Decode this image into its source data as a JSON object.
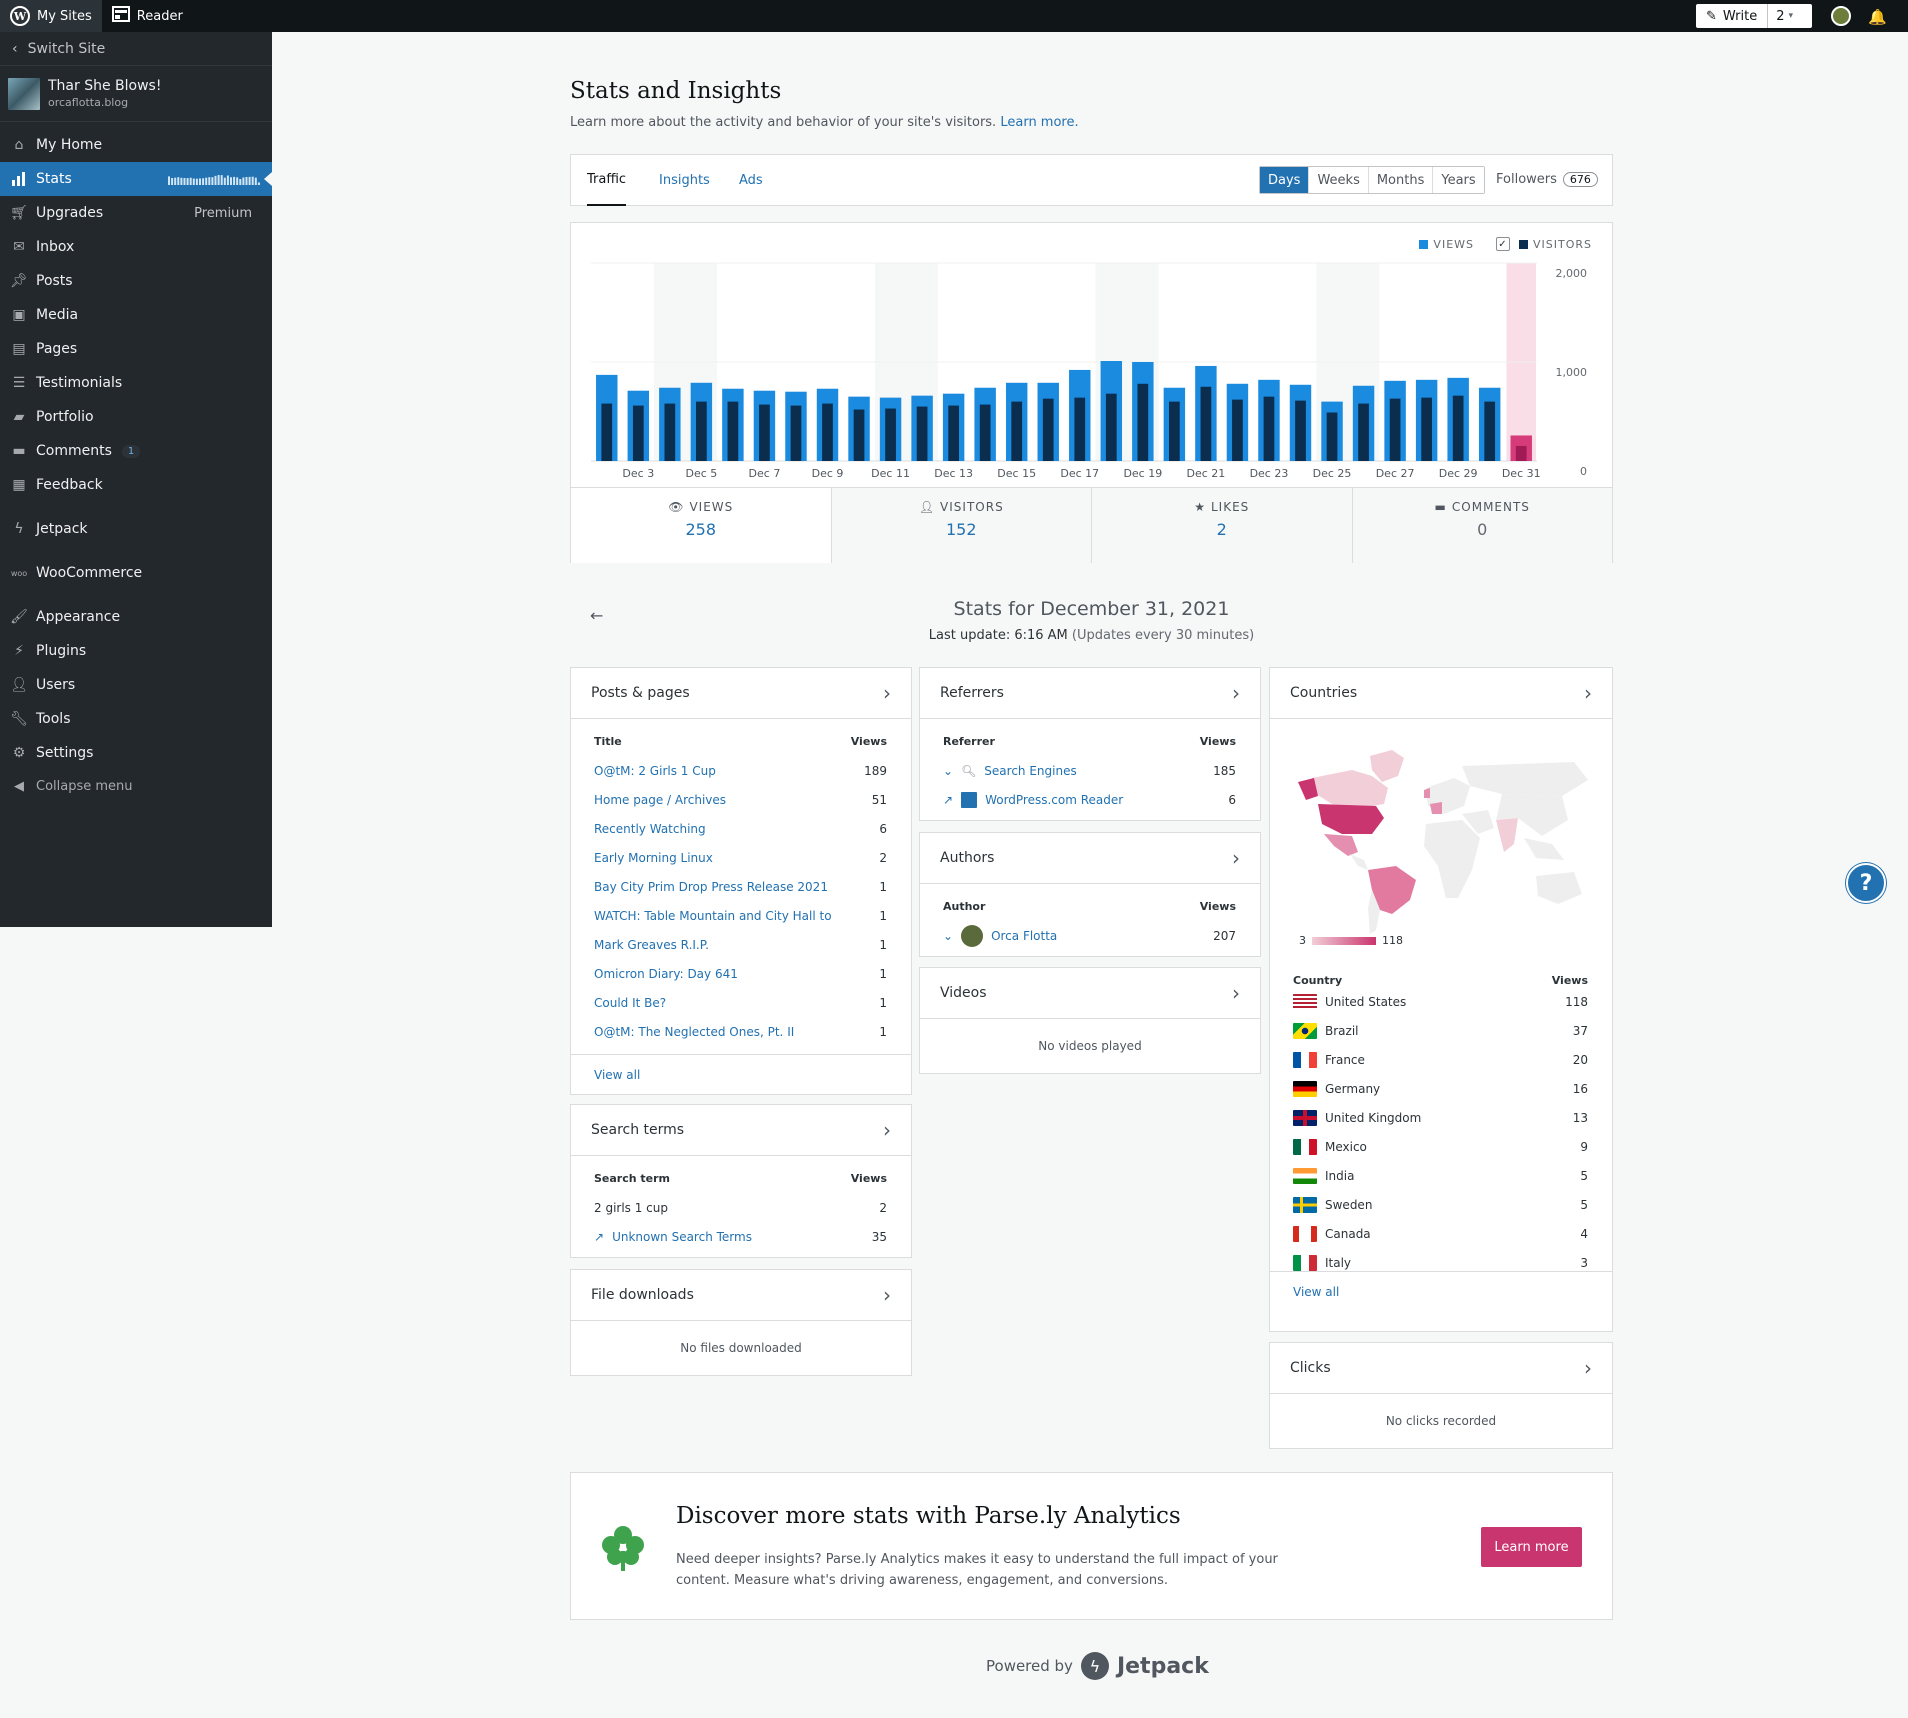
{
  "topbar": {
    "my_sites": "My Sites",
    "reader": "Reader",
    "write": "Write",
    "write_count": "2"
  },
  "sidebar": {
    "switch_site": "Switch Site",
    "site_name": "Thar She Blows!",
    "site_url": "orcaflotta.blog",
    "items": [
      {
        "label": "My Home",
        "icon": "home-icon"
      },
      {
        "label": "Stats",
        "icon": "stats-icon"
      },
      {
        "label": "Upgrades",
        "icon": "cart-icon",
        "extra": "Premium"
      },
      {
        "label": "Inbox",
        "icon": "mail-icon"
      },
      {
        "label": "Posts",
        "icon": "pin-icon"
      },
      {
        "label": "Media",
        "icon": "media-icon"
      },
      {
        "label": "Pages",
        "icon": "pages-icon"
      },
      {
        "label": "Testimonials",
        "icon": "testimonial-icon"
      },
      {
        "label": "Portfolio",
        "icon": "folder-icon"
      },
      {
        "label": "Comments",
        "icon": "comment-icon",
        "badge": "1"
      },
      {
        "label": "Feedback",
        "icon": "feedback-icon"
      },
      {
        "label": "Jetpack",
        "icon": "jetpack-icon"
      },
      {
        "label": "WooCommerce",
        "icon": "woo-icon"
      },
      {
        "label": "Appearance",
        "icon": "brush-icon"
      },
      {
        "label": "Plugins",
        "icon": "plug-icon"
      },
      {
        "label": "Users",
        "icon": "user-icon"
      },
      {
        "label": "Tools",
        "icon": "wrench-icon"
      },
      {
        "label": "Settings",
        "icon": "settings-icon"
      }
    ],
    "collapse": "Collapse menu"
  },
  "header": {
    "title": "Stats and Insights",
    "subtitle": "Learn more about the activity and behavior of your site's visitors.",
    "learn_more": "Learn more."
  },
  "tabs": {
    "traffic": "Traffic",
    "insights": "Insights",
    "ads": "Ads"
  },
  "periods": [
    "Days",
    "Weeks",
    "Months",
    "Years"
  ],
  "followers": {
    "label": "Followers",
    "count": "676"
  },
  "legend": {
    "views": "VIEWS",
    "visitors": "VISITORS"
  },
  "colors": {
    "views": "#1b8be0",
    "visitors": "#0b2e4e",
    "selected_views": "#d63c79",
    "selected_visitors": "#a01b55",
    "accent": "#2271b1",
    "parsely": "#c9356e"
  },
  "chart_data": {
    "type": "bar",
    "categories": [
      "Dec 2",
      "Dec 3",
      "Dec 4",
      "Dec 5",
      "Dec 6",
      "Dec 7",
      "Dec 8",
      "Dec 9",
      "Dec 10",
      "Dec 11",
      "Dec 12",
      "Dec 13",
      "Dec 14",
      "Dec 15",
      "Dec 16",
      "Dec 17",
      "Dec 18",
      "Dec 19",
      "Dec 20",
      "Dec 21",
      "Dec 22",
      "Dec 23",
      "Dec 24",
      "Dec 25",
      "Dec 26",
      "Dec 27",
      "Dec 28",
      "Dec 29",
      "Dec 30",
      "Dec 31"
    ],
    "tick_labels": [
      "Dec 3",
      "Dec 5",
      "Dec 7",
      "Dec 9",
      "Dec 11",
      "Dec 13",
      "Dec 15",
      "Dec 17",
      "Dec 19",
      "Dec 21",
      "Dec 23",
      "Dec 25",
      "Dec 27",
      "Dec 29",
      "Dec 31"
    ],
    "series": [
      {
        "name": "VIEWS",
        "values": [
          870,
          710,
          740,
          790,
          730,
          710,
          700,
          730,
          650,
          640,
          660,
          680,
          740,
          790,
          790,
          920,
          1010,
          1000,
          740,
          960,
          780,
          820,
          770,
          600,
          760,
          810,
          820,
          840,
          740,
          258
        ]
      },
      {
        "name": "VISITORS",
        "values": [
          580,
          560,
          580,
          600,
          600,
          570,
          560,
          580,
          520,
          530,
          550,
          560,
          570,
          600,
          630,
          640,
          680,
          780,
          600,
          750,
          620,
          650,
          610,
          490,
          580,
          630,
          640,
          660,
          600,
          152
        ]
      }
    ],
    "ylim": [
      0,
      2000
    ],
    "yticks": [
      "2,000",
      "1,000",
      "0"
    ],
    "selected": "Dec 31",
    "weekends": [
      "Dec 4",
      "Dec 5",
      "Dec 11",
      "Dec 12",
      "Dec 18",
      "Dec 19",
      "Dec 25",
      "Dec 26"
    ]
  },
  "summary": [
    {
      "label": "VIEWS",
      "value": "258",
      "icon": "eye-icon"
    },
    {
      "label": "VISITORS",
      "value": "152",
      "icon": "person-icon"
    },
    {
      "label": "LIKES",
      "value": "2",
      "icon": "star-icon"
    },
    {
      "label": "COMMENTS",
      "value": "0",
      "icon": "comment-icon"
    }
  ],
  "day": {
    "title": "Stats for December 31, 2021",
    "update": "Last update: 6:16 AM",
    "update_note": "(Updates every 30 minutes)"
  },
  "posts": {
    "title": "Posts & pages",
    "col_title": "Title",
    "col_views": "Views",
    "view_all": "View all",
    "rows": [
      {
        "label": "O@tM: 2 Girls 1 Cup",
        "value": "189"
      },
      {
        "label": "Home page / Archives",
        "value": "51"
      },
      {
        "label": "Recently Watching",
        "value": "6"
      },
      {
        "label": "Early Morning Linux",
        "value": "2"
      },
      {
        "label": "Bay City Prim Drop Press Release 2021",
        "value": "1"
      },
      {
        "label": "WATCH: Table Mountain and City Hall to",
        "value": "1"
      },
      {
        "label": "Mark Greaves R.I.P.",
        "value": "1"
      },
      {
        "label": "Omicron Diary: Day 641",
        "value": "1"
      },
      {
        "label": "Could It Be?",
        "value": "1"
      },
      {
        "label": "O@tM: The Neglected Ones, Pt. II",
        "value": "1"
      }
    ]
  },
  "search": {
    "title": "Search terms",
    "col_term": "Search term",
    "col_views": "Views",
    "rows": [
      {
        "label": "2 girls 1 cup",
        "value": "2"
      },
      {
        "label": "Unknown Search Terms",
        "value": "35"
      }
    ]
  },
  "downloads": {
    "title": "File downloads",
    "empty": "No files downloaded"
  },
  "referrers": {
    "title": "Referrers",
    "col_ref": "Referrer",
    "col_views": "Views",
    "rows": [
      {
        "label": "Search Engines",
        "value": "185"
      },
      {
        "label": "WordPress.com Reader",
        "value": "6"
      }
    ]
  },
  "authors": {
    "title": "Authors",
    "col_author": "Author",
    "col_views": "Views",
    "rows": [
      {
        "label": "Orca Flotta",
        "value": "207"
      }
    ]
  },
  "videos": {
    "title": "Videos",
    "empty": "No videos played"
  },
  "countries": {
    "title": "Countries",
    "col_country": "Country",
    "col_views": "Views",
    "view_all": "View all",
    "legend_min": "3",
    "legend_max": "118",
    "rows": [
      {
        "label": "United States",
        "value": "118"
      },
      {
        "label": "Brazil",
        "value": "37"
      },
      {
        "label": "France",
        "value": "20"
      },
      {
        "label": "Germany",
        "value": "16"
      },
      {
        "label": "United Kingdom",
        "value": "13"
      },
      {
        "label": "Mexico",
        "value": "9"
      },
      {
        "label": "India",
        "value": "5"
      },
      {
        "label": "Sweden",
        "value": "5"
      },
      {
        "label": "Canada",
        "value": "4"
      },
      {
        "label": "Italy",
        "value": "3"
      }
    ]
  },
  "clicks": {
    "title": "Clicks",
    "empty": "No clicks recorded"
  },
  "parsely": {
    "title": "Discover more stats with Parse.ly Analytics",
    "text": "Need deeper insights? Parse.ly Analytics makes it easy to understand the full impact of your content. Measure what's driving awareness, engagement, and conversions.",
    "button": "Learn more"
  },
  "footer": {
    "powered_by": "Powered by",
    "brand": "Jetpack"
  }
}
